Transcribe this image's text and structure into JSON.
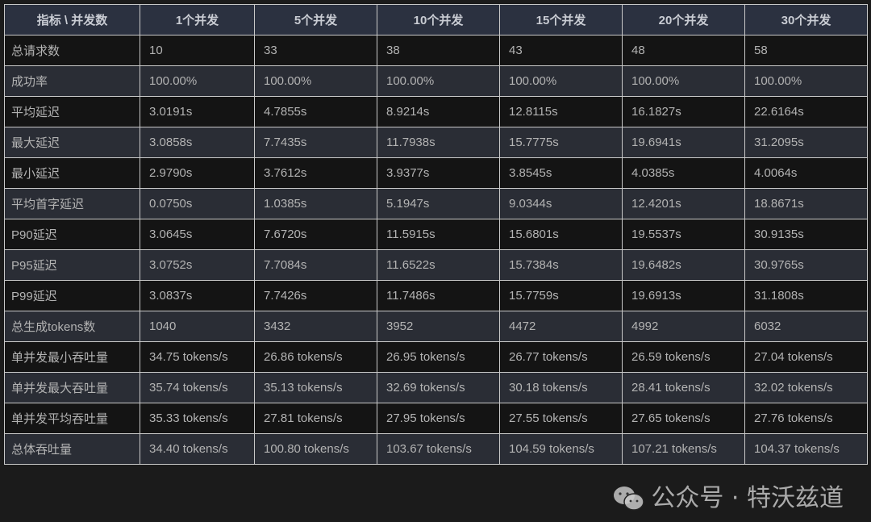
{
  "table": {
    "headers": [
      "指标 \\ 并发数",
      "1个并发",
      "5个并发",
      "10个并发",
      "15个并发",
      "20个并发",
      "30个并发"
    ],
    "rows": [
      [
        "总请求数",
        "10",
        "33",
        "38",
        "43",
        "48",
        "58"
      ],
      [
        "成功率",
        "100.00%",
        "100.00%",
        "100.00%",
        "100.00%",
        "100.00%",
        "100.00%"
      ],
      [
        "平均延迟",
        "3.0191s",
        "4.7855s",
        "8.9214s",
        "12.8115s",
        "16.1827s",
        "22.6164s"
      ],
      [
        "最大延迟",
        "3.0858s",
        "7.7435s",
        "11.7938s",
        "15.7775s",
        "19.6941s",
        "31.2095s"
      ],
      [
        "最小延迟",
        "2.9790s",
        "3.7612s",
        "3.9377s",
        "3.8545s",
        "4.0385s",
        "4.0064s"
      ],
      [
        "平均首字延迟",
        "0.0750s",
        "1.0385s",
        "5.1947s",
        "9.0344s",
        "12.4201s",
        "18.8671s"
      ],
      [
        "P90延迟",
        "3.0645s",
        "7.6720s",
        "11.5915s",
        "15.6801s",
        "19.5537s",
        "30.9135s"
      ],
      [
        "P95延迟",
        "3.0752s",
        "7.7084s",
        "11.6522s",
        "15.7384s",
        "19.6482s",
        "30.9765s"
      ],
      [
        "P99延迟",
        "3.0837s",
        "7.7426s",
        "11.7486s",
        "15.7759s",
        "19.6913s",
        "31.1808s"
      ],
      [
        "总生成tokens数",
        "1040",
        "3432",
        "3952",
        "4472",
        "4992",
        "6032"
      ],
      [
        "单并发最小吞吐量",
        "34.75 tokens/s",
        "26.86 tokens/s",
        "26.95 tokens/s",
        "26.77 tokens/s",
        "26.59 tokens/s",
        "27.04 tokens/s"
      ],
      [
        "单并发最大吞吐量",
        "35.74 tokens/s",
        "35.13 tokens/s",
        "32.69 tokens/s",
        "30.18 tokens/s",
        "28.41 tokens/s",
        "32.02 tokens/s"
      ],
      [
        "单并发平均吞吐量",
        "35.33 tokens/s",
        "27.81 tokens/s",
        "27.95 tokens/s",
        "27.55 tokens/s",
        "27.65 tokens/s",
        "27.76 tokens/s"
      ],
      [
        "总体吞吐量",
        "34.40 tokens/s",
        "100.80 tokens/s",
        "103.67 tokens/s",
        "104.59 tokens/s",
        "107.21 tokens/s",
        "104.37 tokens/s"
      ]
    ]
  },
  "watermark": {
    "text": "公众号 · 特沃兹道",
    "icon": "wechat-icon"
  }
}
